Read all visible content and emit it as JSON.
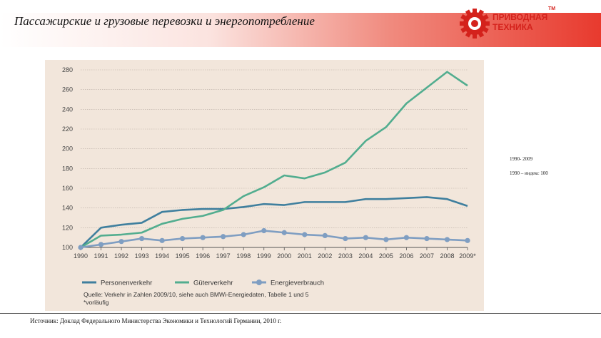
{
  "header": {
    "title": "Пассажирские и грузовые перевозки и энергопотребление",
    "logo_line1": "ПРИВОДНАЯ",
    "logo_line2": "ТЕХНИКА",
    "logo_tm": "TM",
    "accent": "#e83a2e",
    "logo_icon": "gear-icon"
  },
  "side_notes": [
    "1990- 2009",
    "1990 – индекс 100"
  ],
  "chart_data": {
    "type": "line",
    "x": [
      "1990",
      "1991",
      "1992",
      "1993",
      "1994",
      "1995",
      "1996",
      "1997",
      "1998",
      "1999",
      "2000",
      "2001",
      "2002",
      "2003",
      "2004",
      "2005",
      "2006",
      "2007",
      "2008",
      "2009*"
    ],
    "ylim": [
      100,
      280
    ],
    "yticks": [
      100,
      120,
      140,
      160,
      180,
      200,
      220,
      240,
      260,
      280
    ],
    "grid": true,
    "legend_position": "bottom",
    "series": [
      {
        "name": "Personenverkehr",
        "color": "#3f7f9e",
        "marker": false,
        "values": [
          100,
          120,
          123,
          125,
          136,
          138,
          139,
          139,
          141,
          144,
          143,
          146,
          146,
          146,
          149,
          149,
          150,
          151,
          149,
          142
        ]
      },
      {
        "name": "Güterverkehr",
        "color": "#52ad8f",
        "marker": false,
        "values": [
          100,
          112,
          113,
          115,
          124,
          129,
          132,
          138,
          152,
          161,
          173,
          170,
          176,
          186,
          208,
          222,
          246,
          262,
          278,
          264
        ]
      },
      {
        "name": "Energieverbrauch",
        "color": "#7f9ec2",
        "marker": true,
        "values": [
          100,
          103,
          106,
          109,
          107,
          109,
          110,
          111,
          113,
          117,
          115,
          113,
          112,
          109,
          110,
          108,
          110,
          109,
          108,
          107
        ]
      }
    ],
    "source_line1": "Quelle: Verkehr in Zahlen 2009/10, siehe auch BMWi-Energiedaten, Tabelle 1 und 5",
    "source_line2": "*vorläufig"
  },
  "footer": {
    "text": "Источник: Доклад Федерального Министерства Экономики и Технологий Германии, 2010 г."
  }
}
